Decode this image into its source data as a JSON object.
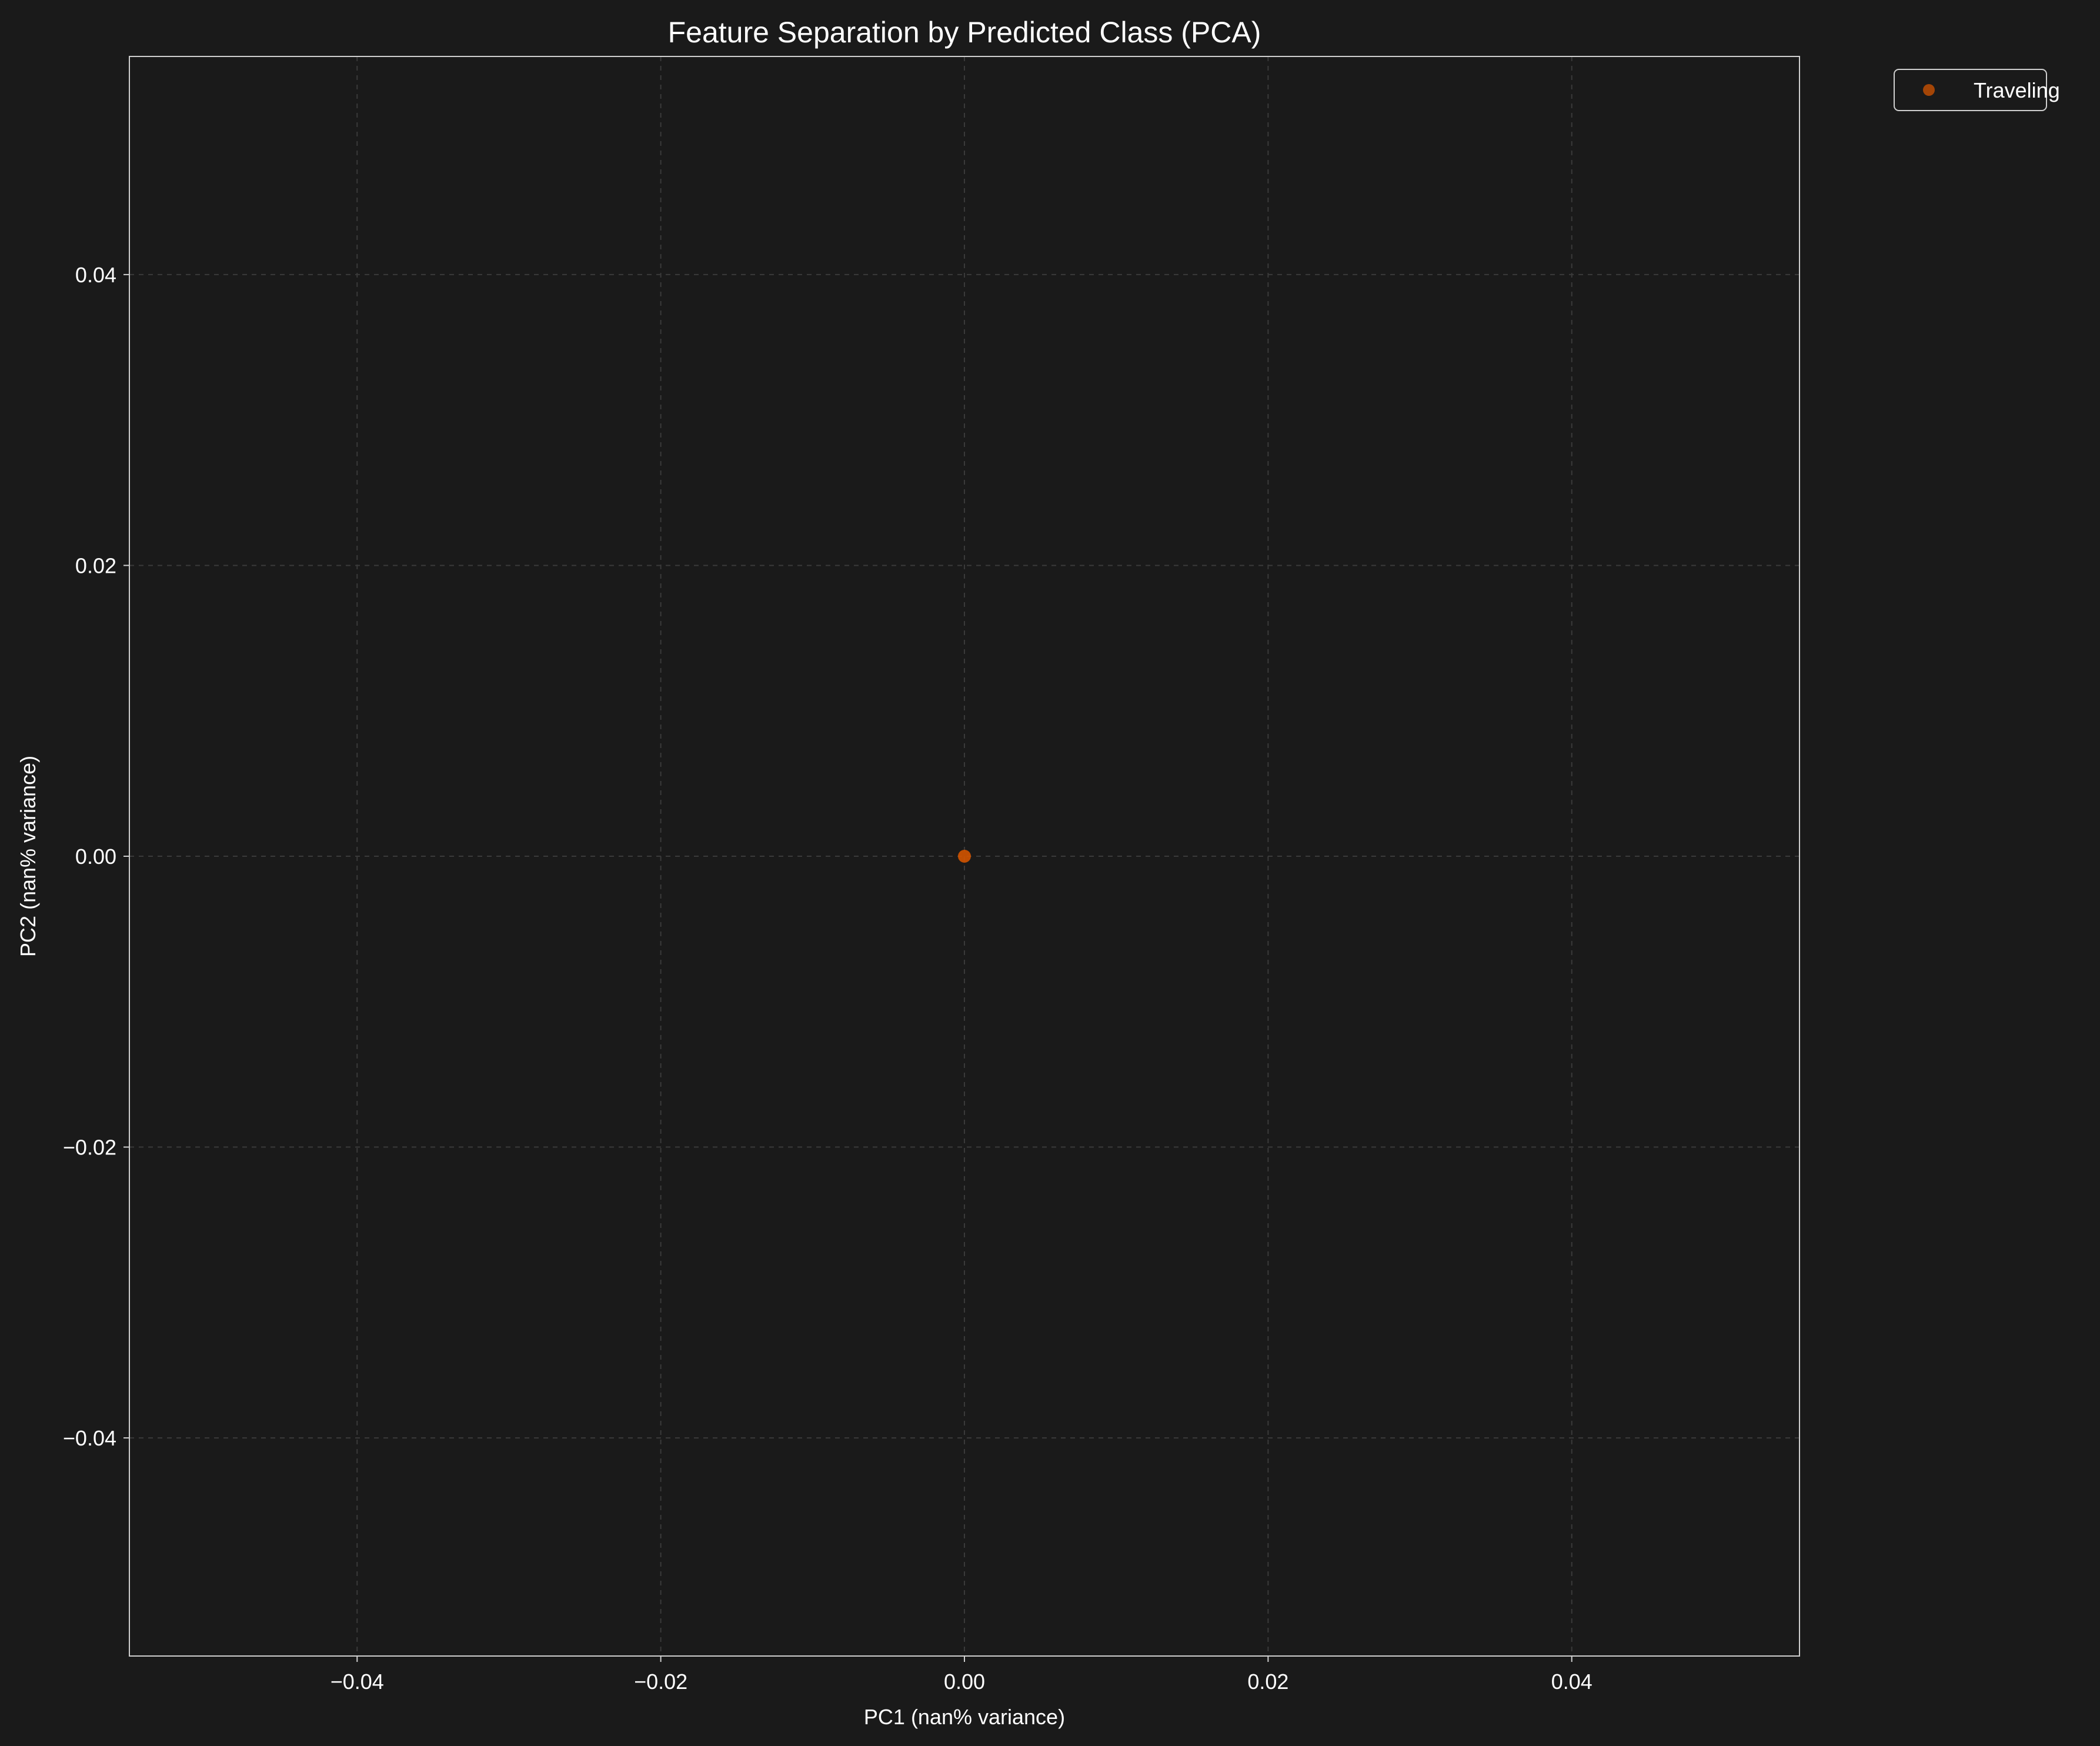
{
  "chart_data": {
    "type": "scatter",
    "title": "Feature Separation by Predicted Class (PCA)",
    "xlabel": "PC1 (nan% variance)",
    "ylabel": "PC2 (nan% variance)",
    "xlim": [
      -0.055,
      0.055
    ],
    "ylim": [
      -0.055,
      0.055
    ],
    "xticks": [
      -0.04,
      -0.02,
      0.0,
      0.02,
      0.04
    ],
    "yticks": [
      -0.04,
      -0.02,
      0.0,
      0.02,
      0.04
    ],
    "xtick_labels": [
      "−0.04",
      "−0.02",
      "0.00",
      "0.02",
      "0.04"
    ],
    "ytick_labels": [
      "−0.04",
      "−0.02",
      "0.00",
      "0.02",
      "0.04"
    ],
    "grid": true,
    "legend_position": "outside-top-right",
    "series": [
      {
        "name": "Traveling",
        "color": "#d35400",
        "x": [
          0.0
        ],
        "y": [
          0.0
        ]
      }
    ]
  },
  "colors": {
    "background": "#1a1a1a",
    "axes_face": "#1a1a1a",
    "spine": "#d0d0d0",
    "grid": "#3a3a3a",
    "text": "#ffffff"
  }
}
